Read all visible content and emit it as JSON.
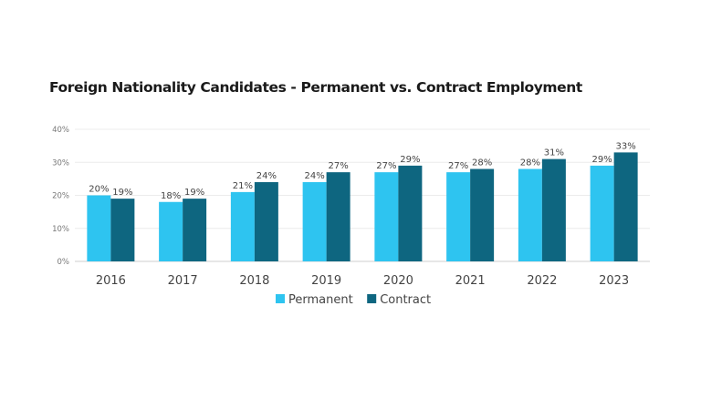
{
  "chart_data": {
    "type": "bar",
    "title": "Foreign Nationality Candidates - Permanent vs. Contract Employment",
    "categories": [
      "2016",
      "2017",
      "2018",
      "2019",
      "2020",
      "2021",
      "2022",
      "2023"
    ],
    "series": [
      {
        "name": "Permanent",
        "color": "#2EC4F0",
        "values": [
          20,
          18,
          21,
          24,
          27,
          27,
          28,
          29
        ]
      },
      {
        "name": "Contract",
        "color": "#0E6680",
        "values": [
          19,
          19,
          24,
          27,
          29,
          28,
          31,
          33
        ]
      }
    ],
    "ylim": [
      0,
      40
    ],
    "yticks": [
      0,
      10,
      20,
      30,
      40
    ],
    "ytick_labels": [
      "0%",
      "10%",
      "20%",
      "30%",
      "40%"
    ],
    "value_suffix": "%",
    "grid": true,
    "legend": "bottom-center"
  }
}
